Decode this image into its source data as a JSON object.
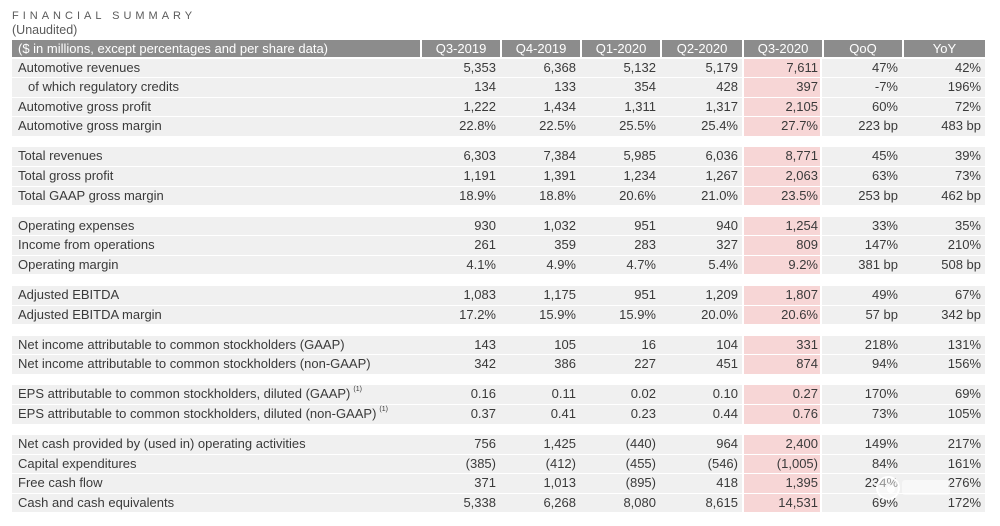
{
  "title": "FINANCIAL SUMMARY",
  "subtitle": "(Unaudited)",
  "colors": {
    "header_background": "#8c8c8c",
    "row_background": "#f0f0f0",
    "highlight_background": "#f7d6d6",
    "text": "#3a3a3a"
  },
  "table": {
    "header_label": "($ in millions, except percentages and per share data)",
    "columns": [
      "Q3-2019",
      "Q4-2019",
      "Q1-2020",
      "Q2-2020",
      "Q3-2020",
      "QoQ",
      "YoY"
    ],
    "groups": [
      {
        "rows": [
          {
            "label": "Automotive revenues",
            "values": [
              "5,353",
              "6,368",
              "5,132",
              "5,179",
              "7,611",
              "47%",
              "42%"
            ]
          },
          {
            "label": "of which regulatory credits",
            "values": [
              "134",
              "133",
              "354",
              "428",
              "397",
              "-7%",
              "196%"
            ]
          },
          {
            "label": "Automotive gross profit",
            "values": [
              "1,222",
              "1,434",
              "1,311",
              "1,317",
              "2,105",
              "60%",
              "72%"
            ]
          },
          {
            "label": "Automotive gross margin",
            "values": [
              "22.8%",
              "22.5%",
              "25.5%",
              "25.4%",
              "27.7%",
              "223 bp",
              "483 bp"
            ]
          }
        ]
      },
      {
        "rows": [
          {
            "label": "Total revenues",
            "values": [
              "6,303",
              "7,384",
              "5,985",
              "6,036",
              "8,771",
              "45%",
              "39%"
            ]
          },
          {
            "label": "Total gross profit",
            "values": [
              "1,191",
              "1,391",
              "1,234",
              "1,267",
              "2,063",
              "63%",
              "73%"
            ]
          },
          {
            "label": "Total GAAP gross margin",
            "values": [
              "18.9%",
              "18.8%",
              "20.6%",
              "21.0%",
              "23.5%",
              "253 bp",
              "462 bp"
            ]
          }
        ]
      },
      {
        "rows": [
          {
            "label": "Operating expenses",
            "values": [
              "930",
              "1,032",
              "951",
              "940",
              "1,254",
              "33%",
              "35%"
            ]
          },
          {
            "label": "Income from operations",
            "values": [
              "261",
              "359",
              "283",
              "327",
              "809",
              "147%",
              "210%"
            ]
          },
          {
            "label": "Operating margin",
            "values": [
              "4.1%",
              "4.9%",
              "4.7%",
              "5.4%",
              "9.2%",
              "381 bp",
              "508 bp"
            ]
          }
        ]
      },
      {
        "rows": [
          {
            "label": "Adjusted EBITDA",
            "values": [
              "1,083",
              "1,175",
              "951",
              "1,209",
              "1,807",
              "49%",
              "67%"
            ]
          },
          {
            "label": "Adjusted EBITDA margin",
            "values": [
              "17.2%",
              "15.9%",
              "15.9%",
              "20.0%",
              "20.6%",
              "57 bp",
              "342 bp"
            ]
          }
        ]
      },
      {
        "rows": [
          {
            "label": "Net income attributable to common stockholders (GAAP)",
            "values": [
              "143",
              "105",
              "16",
              "104",
              "331",
              "218%",
              "131%"
            ]
          },
          {
            "label": "Net income attributable to common stockholders (non-GAAP)",
            "values": [
              "342",
              "386",
              "227",
              "451",
              "874",
              "94%",
              "156%"
            ]
          }
        ]
      },
      {
        "rows": [
          {
            "label": "EPS attributable to common stockholders, diluted (GAAP)",
            "footnote": "(1)",
            "values": [
              "0.16",
              "0.11",
              "0.02",
              "0.10",
              "0.27",
              "170%",
              "69%"
            ]
          },
          {
            "label": "EPS attributable to common stockholders, diluted (non-GAAP)",
            "footnote": "(1)",
            "values": [
              "0.37",
              "0.41",
              "0.23",
              "0.44",
              "0.76",
              "73%",
              "105%"
            ]
          }
        ]
      },
      {
        "rows": [
          {
            "label": "Net cash provided by (used in) operating activities",
            "values": [
              "756",
              "1,425",
              "(440)",
              "964",
              "2,400",
              "149%",
              "217%"
            ]
          },
          {
            "label": "Capital expenditures",
            "values": [
              "(385)",
              "(412)",
              "(455)",
              "(546)",
              "(1,005)",
              "84%",
              "161%"
            ]
          },
          {
            "label": "Free cash flow",
            "values": [
              "371",
              "1,013",
              "(895)",
              "418",
              "1,395",
              "234%",
              "276%"
            ]
          },
          {
            "label": "Cash and cash equivalents",
            "values": [
              "5,338",
              "6,268",
              "8,080",
              "8,615",
              "14,531",
              "69%",
              "172%"
            ]
          }
        ]
      }
    ]
  }
}
